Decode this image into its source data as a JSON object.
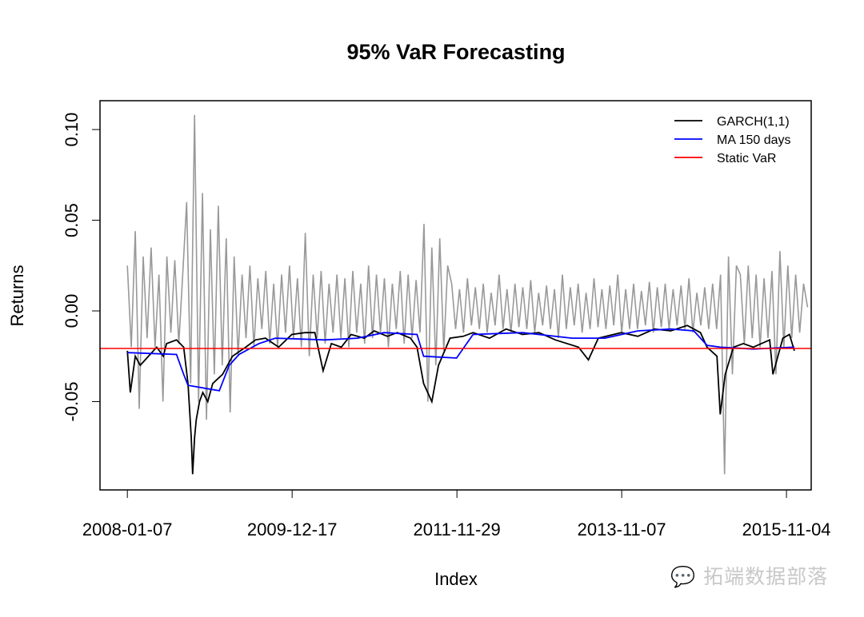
{
  "chart_data": {
    "type": "line",
    "title": "95% VaR Forecasting",
    "xlabel": "Index",
    "ylabel": "Returns",
    "xlim": [
      -82,
      2076
    ],
    "ylim": [
      -0.0987,
      0.1159
    ],
    "grid": false,
    "legend_position": "top-right",
    "x_ticks": [
      1,
      501,
      1001,
      1501,
      2001
    ],
    "x_tick_labels": [
      "2008-01-07",
      "2009-12-17",
      "2011-11-29",
      "2013-11-07",
      "2015-11-04"
    ],
    "y_ticks": [
      -0.05,
      0.0,
      0.05,
      0.1
    ],
    "y_tick_labels": [
      "-0.05",
      "0.00",
      "0.05",
      "0.10"
    ],
    "returns": {
      "name": "Returns",
      "color": "#999999",
      "x_start": 1,
      "x_step": 12,
      "values": [
        0.025,
        -0.02,
        0.044,
        -0.054,
        0.03,
        -0.015,
        0.035,
        -0.02,
        0.02,
        -0.05,
        0.03,
        -0.012,
        0.028,
        -0.018,
        0.02,
        0.06,
        -0.04,
        0.108,
        -0.05,
        0.065,
        -0.06,
        0.045,
        -0.035,
        0.058,
        -0.03,
        0.04,
        -0.056,
        0.03,
        -0.025,
        0.02,
        -0.015,
        0.025,
        -0.02,
        0.018,
        -0.01,
        0.022,
        -0.018,
        0.015,
        -0.02,
        0.02,
        -0.012,
        0.025,
        -0.015,
        0.018,
        -0.02,
        0.043,
        -0.025,
        0.02,
        -0.015,
        0.022,
        -0.018,
        0.015,
        -0.012,
        0.02,
        -0.015,
        0.018,
        -0.02,
        0.022,
        -0.012,
        0.015,
        -0.018,
        0.025,
        -0.015,
        0.02,
        -0.012,
        0.018,
        -0.02,
        0.015,
        -0.01,
        0.022,
        -0.018,
        0.02,
        -0.015,
        0.017,
        -0.012,
        0.048,
        -0.05,
        0.035,
        -0.03,
        0.04,
        -0.022,
        0.025,
        0.015,
        -0.01,
        0.012,
        -0.012,
        0.018,
        -0.008,
        0.013,
        -0.01,
        0.015,
        -0.012,
        0.01,
        -0.008,
        0.02,
        -0.01,
        0.012,
        -0.012,
        0.015,
        -0.009,
        0.013,
        -0.01,
        0.017,
        -0.012,
        0.01,
        -0.008,
        0.014,
        -0.01,
        0.012,
        -0.015,
        0.02,
        -0.01,
        0.013,
        -0.008,
        0.015,
        -0.012,
        0.01,
        -0.01,
        0.018,
        -0.009,
        0.012,
        -0.01,
        0.014,
        -0.008,
        0.02,
        -0.012,
        0.012,
        -0.01,
        0.015,
        -0.01,
        0.011,
        -0.008,
        0.016,
        -0.012,
        0.013,
        -0.009,
        0.015,
        -0.01,
        0.012,
        -0.008,
        0.014,
        -0.01,
        0.018,
        -0.012,
        0.01,
        -0.008,
        0.013,
        -0.01,
        0.015,
        -0.01,
        0.02,
        -0.09,
        0.03,
        -0.035,
        0.025,
        0.02,
        -0.018,
        0.025,
        -0.015,
        0.02,
        -0.02,
        0.018,
        -0.015,
        0.022,
        -0.035,
        0.033,
        -0.02,
        0.025,
        -0.015,
        0.02,
        -0.012,
        0.015,
        0.002
      ]
    },
    "series": [
      {
        "name": "GARCH(1,1)",
        "color": "#000000",
        "points": [
          [
            1,
            -0.022
          ],
          [
            10,
            -0.045
          ],
          [
            25,
            -0.025
          ],
          [
            40,
            -0.03
          ],
          [
            60,
            -0.026
          ],
          [
            90,
            -0.02
          ],
          [
            110,
            -0.025
          ],
          [
            120,
            -0.018
          ],
          [
            150,
            -0.016
          ],
          [
            172,
            -0.02
          ],
          [
            185,
            -0.04
          ],
          [
            195,
            -0.07
          ],
          [
            199,
            -0.09
          ],
          [
            205,
            -0.07
          ],
          [
            210,
            -0.06
          ],
          [
            220,
            -0.05
          ],
          [
            230,
            -0.045
          ],
          [
            245,
            -0.05
          ],
          [
            260,
            -0.04
          ],
          [
            290,
            -0.035
          ],
          [
            320,
            -0.025
          ],
          [
            360,
            -0.02
          ],
          [
            390,
            -0.016
          ],
          [
            420,
            -0.015
          ],
          [
            460,
            -0.02
          ],
          [
            500,
            -0.013
          ],
          [
            540,
            -0.012
          ],
          [
            570,
            -0.012
          ],
          [
            595,
            -0.033
          ],
          [
            620,
            -0.018
          ],
          [
            650,
            -0.02
          ],
          [
            680,
            -0.013
          ],
          [
            720,
            -0.015
          ],
          [
            750,
            -0.011
          ],
          [
            790,
            -0.014
          ],
          [
            820,
            -0.012
          ],
          [
            860,
            -0.015
          ],
          [
            880,
            -0.02
          ],
          [
            900,
            -0.04
          ],
          [
            925,
            -0.05
          ],
          [
            945,
            -0.03
          ],
          [
            980,
            -0.015
          ],
          [
            1020,
            -0.014
          ],
          [
            1050,
            -0.012
          ],
          [
            1100,
            -0.015
          ],
          [
            1150,
            -0.01
          ],
          [
            1200,
            -0.013
          ],
          [
            1250,
            -0.012
          ],
          [
            1300,
            -0.016
          ],
          [
            1370,
            -0.02
          ],
          [
            1400,
            -0.027
          ],
          [
            1430,
            -0.015
          ],
          [
            1500,
            -0.012
          ],
          [
            1550,
            -0.014
          ],
          [
            1600,
            -0.01
          ],
          [
            1650,
            -0.011
          ],
          [
            1700,
            -0.008
          ],
          [
            1740,
            -0.012
          ],
          [
            1760,
            -0.02
          ],
          [
            1790,
            -0.025
          ],
          [
            1800,
            -0.057
          ],
          [
            1815,
            -0.035
          ],
          [
            1840,
            -0.02
          ],
          [
            1870,
            -0.018
          ],
          [
            1900,
            -0.02
          ],
          [
            1950,
            -0.016
          ],
          [
            1960,
            -0.035
          ],
          [
            1975,
            -0.025
          ],
          [
            1990,
            -0.015
          ],
          [
            2010,
            -0.013
          ],
          [
            2025,
            -0.022
          ]
        ]
      },
      {
        "name": "MA 150 days",
        "color": "#0000ff",
        "points": [
          [
            1,
            -0.023
          ],
          [
            150,
            -0.024
          ],
          [
            172,
            -0.035
          ],
          [
            185,
            -0.041
          ],
          [
            280,
            -0.044
          ],
          [
            310,
            -0.03
          ],
          [
            340,
            -0.024
          ],
          [
            400,
            -0.018
          ],
          [
            450,
            -0.015
          ],
          [
            600,
            -0.016
          ],
          [
            700,
            -0.015
          ],
          [
            780,
            -0.012
          ],
          [
            880,
            -0.013
          ],
          [
            900,
            -0.025
          ],
          [
            1000,
            -0.026
          ],
          [
            1050,
            -0.013
          ],
          [
            1200,
            -0.012
          ],
          [
            1350,
            -0.015
          ],
          [
            1450,
            -0.015
          ],
          [
            1550,
            -0.011
          ],
          [
            1650,
            -0.01
          ],
          [
            1720,
            -0.011
          ],
          [
            1760,
            -0.019
          ],
          [
            1800,
            -0.02
          ],
          [
            1900,
            -0.021
          ],
          [
            2025,
            -0.02
          ]
        ]
      },
      {
        "name": "Static VaR",
        "color": "#ff0000",
        "hline": -0.0207
      }
    ]
  },
  "watermark": "拓端数据部落"
}
